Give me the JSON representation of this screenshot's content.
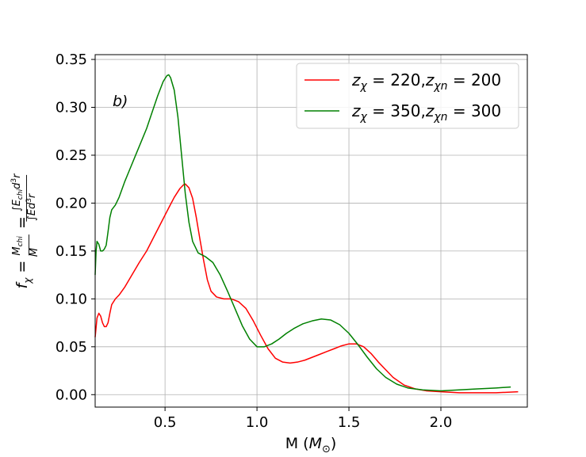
{
  "chart_data": {
    "type": "line",
    "panel_label": "b)",
    "xlabel": "M ($M_\\odot$)",
    "ylabel": "$f_\\chi = \\frac{M_{chi}}{M} = \\frac{\\int E_{chi} d^3r}{\\int E d^3r}$",
    "xlim": [
      0.12,
      2.47
    ],
    "ylim": [
      -0.013,
      0.355
    ],
    "xticks": [
      0.5,
      1.0,
      1.5,
      2.0
    ],
    "xtick_labels": [
      "0.5",
      "1.0",
      "1.5",
      "2.0"
    ],
    "yticks": [
      0.0,
      0.05,
      0.1,
      0.15,
      0.2,
      0.25,
      0.3,
      0.35
    ],
    "ytick_labels": [
      "0.00",
      "0.05",
      "0.10",
      "0.15",
      "0.20",
      "0.25",
      "0.30",
      "0.35"
    ],
    "grid": true,
    "legend_position": "top-right",
    "series": [
      {
        "name": "$z_\\chi = 220$,$z_{\\chi n} = 200$",
        "color": "#ff0000",
        "points": [
          [
            0.12,
            0.06
          ],
          [
            0.13,
            0.08
          ],
          [
            0.14,
            0.085
          ],
          [
            0.15,
            0.082
          ],
          [
            0.16,
            0.075
          ],
          [
            0.17,
            0.071
          ],
          [
            0.18,
            0.071
          ],
          [
            0.19,
            0.075
          ],
          [
            0.2,
            0.085
          ],
          [
            0.21,
            0.094
          ],
          [
            0.23,
            0.1
          ],
          [
            0.25,
            0.104
          ],
          [
            0.28,
            0.112
          ],
          [
            0.32,
            0.125
          ],
          [
            0.36,
            0.138
          ],
          [
            0.4,
            0.15
          ],
          [
            0.44,
            0.165
          ],
          [
            0.48,
            0.18
          ],
          [
            0.52,
            0.195
          ],
          [
            0.55,
            0.206
          ],
          [
            0.58,
            0.215
          ],
          [
            0.6,
            0.219
          ],
          [
            0.61,
            0.22
          ],
          [
            0.63,
            0.216
          ],
          [
            0.65,
            0.205
          ],
          [
            0.67,
            0.185
          ],
          [
            0.69,
            0.162
          ],
          [
            0.71,
            0.14
          ],
          [
            0.73,
            0.12
          ],
          [
            0.75,
            0.108
          ],
          [
            0.78,
            0.102
          ],
          [
            0.82,
            0.1
          ],
          [
            0.86,
            0.1
          ],
          [
            0.9,
            0.097
          ],
          [
            0.94,
            0.09
          ],
          [
            0.98,
            0.077
          ],
          [
            1.02,
            0.062
          ],
          [
            1.06,
            0.048
          ],
          [
            1.1,
            0.038
          ],
          [
            1.14,
            0.034
          ],
          [
            1.18,
            0.033
          ],
          [
            1.22,
            0.034
          ],
          [
            1.26,
            0.036
          ],
          [
            1.3,
            0.039
          ],
          [
            1.34,
            0.042
          ],
          [
            1.38,
            0.045
          ],
          [
            1.42,
            0.048
          ],
          [
            1.46,
            0.051
          ],
          [
            1.5,
            0.053
          ],
          [
            1.54,
            0.053
          ],
          [
            1.58,
            0.05
          ],
          [
            1.62,
            0.043
          ],
          [
            1.66,
            0.034
          ],
          [
            1.7,
            0.026
          ],
          [
            1.74,
            0.018
          ],
          [
            1.8,
            0.01
          ],
          [
            1.86,
            0.006
          ],
          [
            1.92,
            0.004
          ],
          [
            2.0,
            0.003
          ],
          [
            2.1,
            0.002
          ],
          [
            2.2,
            0.002
          ],
          [
            2.3,
            0.002
          ],
          [
            2.42,
            0.003
          ]
        ]
      },
      {
        "name": "$z_\\chi = 350$,$z_{\\chi n} = 300$",
        "color": "#008000",
        "points": [
          [
            0.12,
            0.125
          ],
          [
            0.125,
            0.15
          ],
          [
            0.13,
            0.16
          ],
          [
            0.14,
            0.157
          ],
          [
            0.15,
            0.15
          ],
          [
            0.16,
            0.15
          ],
          [
            0.17,
            0.152
          ],
          [
            0.18,
            0.156
          ],
          [
            0.19,
            0.17
          ],
          [
            0.2,
            0.185
          ],
          [
            0.21,
            0.193
          ],
          [
            0.23,
            0.198
          ],
          [
            0.25,
            0.206
          ],
          [
            0.28,
            0.222
          ],
          [
            0.31,
            0.236
          ],
          [
            0.34,
            0.25
          ],
          [
            0.37,
            0.264
          ],
          [
            0.4,
            0.278
          ],
          [
            0.43,
            0.295
          ],
          [
            0.46,
            0.312
          ],
          [
            0.49,
            0.327
          ],
          [
            0.51,
            0.333
          ],
          [
            0.52,
            0.334
          ],
          [
            0.53,
            0.331
          ],
          [
            0.55,
            0.318
          ],
          [
            0.57,
            0.29
          ],
          [
            0.59,
            0.25
          ],
          [
            0.61,
            0.21
          ],
          [
            0.63,
            0.18
          ],
          [
            0.65,
            0.16
          ],
          [
            0.68,
            0.148
          ],
          [
            0.72,
            0.144
          ],
          [
            0.76,
            0.138
          ],
          [
            0.8,
            0.125
          ],
          [
            0.84,
            0.108
          ],
          [
            0.88,
            0.09
          ],
          [
            0.92,
            0.072
          ],
          [
            0.96,
            0.058
          ],
          [
            1.0,
            0.05
          ],
          [
            1.04,
            0.05
          ],
          [
            1.08,
            0.053
          ],
          [
            1.12,
            0.058
          ],
          [
            1.16,
            0.064
          ],
          [
            1.2,
            0.069
          ],
          [
            1.25,
            0.074
          ],
          [
            1.3,
            0.077
          ],
          [
            1.35,
            0.079
          ],
          [
            1.4,
            0.078
          ],
          [
            1.45,
            0.073
          ],
          [
            1.5,
            0.064
          ],
          [
            1.55,
            0.052
          ],
          [
            1.6,
            0.039
          ],
          [
            1.65,
            0.027
          ],
          [
            1.7,
            0.018
          ],
          [
            1.76,
            0.011
          ],
          [
            1.82,
            0.007
          ],
          [
            1.9,
            0.005
          ],
          [
            2.0,
            0.004
          ],
          [
            2.1,
            0.005
          ],
          [
            2.2,
            0.006
          ],
          [
            2.3,
            0.007
          ],
          [
            2.38,
            0.008
          ]
        ]
      }
    ]
  }
}
